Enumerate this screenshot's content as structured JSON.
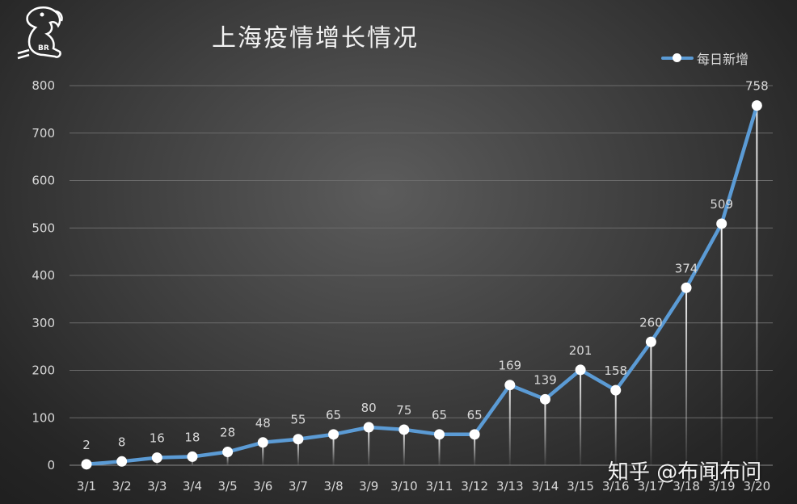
{
  "title": "上海疫情增长情况",
  "legend_label": "每日新增",
  "watermark": "知乎 @布闻布问",
  "logo_text": "BR",
  "colors": {
    "line": "#5b9bd5",
    "marker": "#ffffff",
    "text": "#d9d9d9",
    "grid": "#6a6a6a"
  },
  "chart_data": {
    "type": "line",
    "title": "上海疫情增长情况",
    "categories": [
      "3/1",
      "3/2",
      "3/3",
      "3/4",
      "3/5",
      "3/6",
      "3/7",
      "3/8",
      "3/9",
      "3/10",
      "3/11",
      "3/12",
      "3/13",
      "3/14",
      "3/15",
      "3/16",
      "3/17",
      "3/18",
      "3/19",
      "3/20"
    ],
    "series": [
      {
        "name": "每日新增",
        "values": [
          2,
          8,
          16,
          18,
          28,
          48,
          55,
          65,
          80,
          75,
          65,
          65,
          169,
          139,
          201,
          158,
          260,
          374,
          509,
          758
        ]
      }
    ],
    "yticks": [
      0,
      100,
      200,
      300,
      400,
      500,
      600,
      700,
      800
    ],
    "ylim": [
      0,
      800
    ],
    "grid": true,
    "legend_position": "top-right",
    "data_labels": true
  }
}
